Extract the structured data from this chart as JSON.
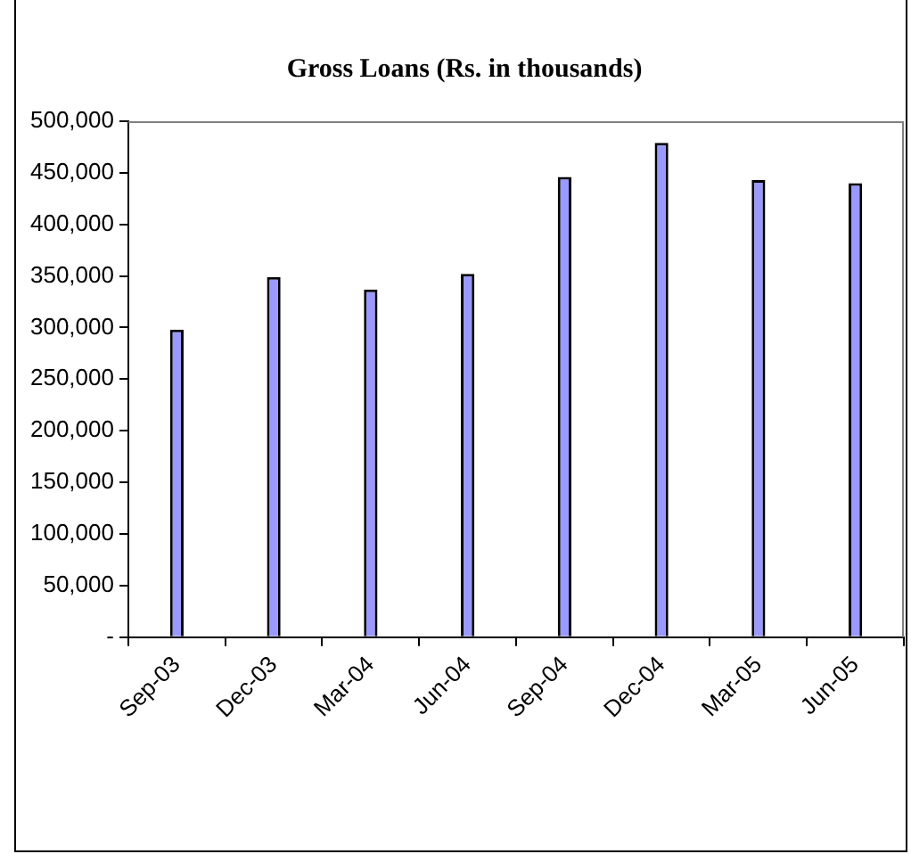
{
  "chart_data": {
    "type": "bar",
    "title": "Gross Loans (Rs. in thousands)",
    "categories": [
      "Sep-03",
      "Dec-03",
      "Mar-04",
      "Jun-04",
      "Sep-04",
      "Dec-04",
      "Mar-05",
      "Jun-05"
    ],
    "values": [
      298000,
      349000,
      337000,
      352000,
      446000,
      479000,
      443000,
      440000
    ],
    "color": "#9999ff",
    "ylim": [
      0,
      500000
    ],
    "yticks": [
      {
        "value": 0,
        "label": "-"
      },
      {
        "value": 50000,
        "label": "50,000"
      },
      {
        "value": 100000,
        "label": "100,000"
      },
      {
        "value": 150000,
        "label": "150,000"
      },
      {
        "value": 200000,
        "label": "200,000"
      },
      {
        "value": 250000,
        "label": "250,000"
      },
      {
        "value": 300000,
        "label": "300,000"
      },
      {
        "value": 350000,
        "label": "350,000"
      },
      {
        "value": 400000,
        "label": "400,000"
      },
      {
        "value": 450000,
        "label": "450,000"
      },
      {
        "value": 500000,
        "label": "500,000"
      }
    ],
    "grid": false,
    "legend": false
  }
}
